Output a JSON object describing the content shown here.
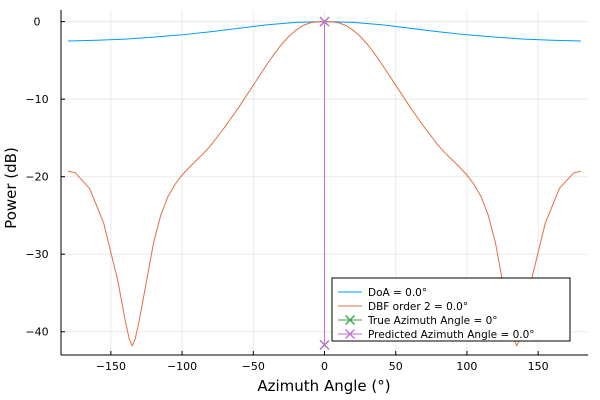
{
  "chart_data": {
    "type": "line",
    "xlabel": "Azimuth Angle (°)",
    "ylabel": "Power (dB)",
    "xlim": [
      -185,
      185
    ],
    "ylim": [
      -43,
      1.5
    ],
    "xticks": [
      -150,
      -100,
      -50,
      0,
      50,
      100,
      150
    ],
    "xtick_labels": [
      "−150",
      "−100",
      "−50",
      "0",
      "50",
      "100",
      "150"
    ],
    "yticks": [
      0,
      -10,
      -20,
      -30,
      -40
    ],
    "ytick_labels": [
      "0",
      "−10",
      "−20",
      "−30",
      "−40"
    ],
    "grid": true,
    "legend_position": "bottom-right",
    "series": [
      {
        "name": "DoA = 0.0°",
        "color": "#009af9",
        "marker": "none",
        "x": [
          -180,
          -160,
          -140,
          -120,
          -100,
          -80,
          -60,
          -40,
          -20,
          0,
          20,
          40,
          60,
          80,
          100,
          120,
          140,
          160,
          180
        ],
        "y": [
          -2.5,
          -2.4,
          -2.25,
          -2.0,
          -1.7,
          -1.3,
          -0.85,
          -0.4,
          -0.1,
          0,
          -0.1,
          -0.4,
          -0.85,
          -1.3,
          -1.7,
          -2.0,
          -2.25,
          -2.4,
          -2.5
        ]
      },
      {
        "name": "DBF order 2 = 0.0°",
        "color": "#e26f46",
        "marker": "none",
        "x": [
          -180,
          -175,
          -165,
          -155,
          -145,
          -140,
          -137,
          -135,
          -133,
          -130,
          -125,
          -120,
          -115,
          -110,
          -105,
          -100,
          -95,
          -90,
          -85,
          -80,
          -75,
          -70,
          -65,
          -60,
          -55,
          -50,
          -45,
          -40,
          -35,
          -30,
          -25,
          -20,
          -15,
          -10,
          -5,
          0,
          5,
          10,
          15,
          20,
          25,
          30,
          35,
          40,
          45,
          50,
          55,
          60,
          65,
          70,
          75,
          80,
          85,
          90,
          95,
          100,
          105,
          110,
          115,
          120,
          125,
          130,
          133,
          135,
          137,
          140,
          145,
          155,
          165,
          175,
          180
        ],
        "y": [
          -19.3,
          -19.5,
          -21.5,
          -26.0,
          -33.5,
          -38.5,
          -41.0,
          -41.8,
          -41.0,
          -38.5,
          -33.5,
          -28.5,
          -25.0,
          -22.6,
          -21.0,
          -19.8,
          -18.8,
          -17.9,
          -17.0,
          -16.0,
          -14.8,
          -13.6,
          -12.3,
          -11.0,
          -9.6,
          -8.2,
          -6.8,
          -5.4,
          -4.1,
          -2.9,
          -1.9,
          -1.1,
          -0.5,
          -0.15,
          -0.03,
          0,
          -0.03,
          -0.15,
          -0.5,
          -1.1,
          -1.9,
          -2.9,
          -4.1,
          -5.4,
          -6.8,
          -8.2,
          -9.6,
          -11.0,
          -12.3,
          -13.6,
          -14.8,
          -16.0,
          -17.0,
          -17.9,
          -18.8,
          -19.8,
          -21.0,
          -22.6,
          -25.0,
          -28.5,
          -33.5,
          -38.5,
          -41.0,
          -41.8,
          -41.0,
          -38.5,
          -33.5,
          -26.0,
          -21.5,
          -19.5,
          -19.3
        ]
      },
      {
        "name": "True Azimuth Angle = 0°",
        "color": "#3ea44e",
        "marker": "x",
        "x": [
          0,
          0
        ],
        "y": [
          0,
          -41.7
        ]
      },
      {
        "name": "Predicted Azimuth Angle = 0.0°",
        "color": "#c271d2",
        "marker": "x",
        "x": [
          0,
          0
        ],
        "y": [
          0,
          -41.7
        ]
      }
    ]
  }
}
